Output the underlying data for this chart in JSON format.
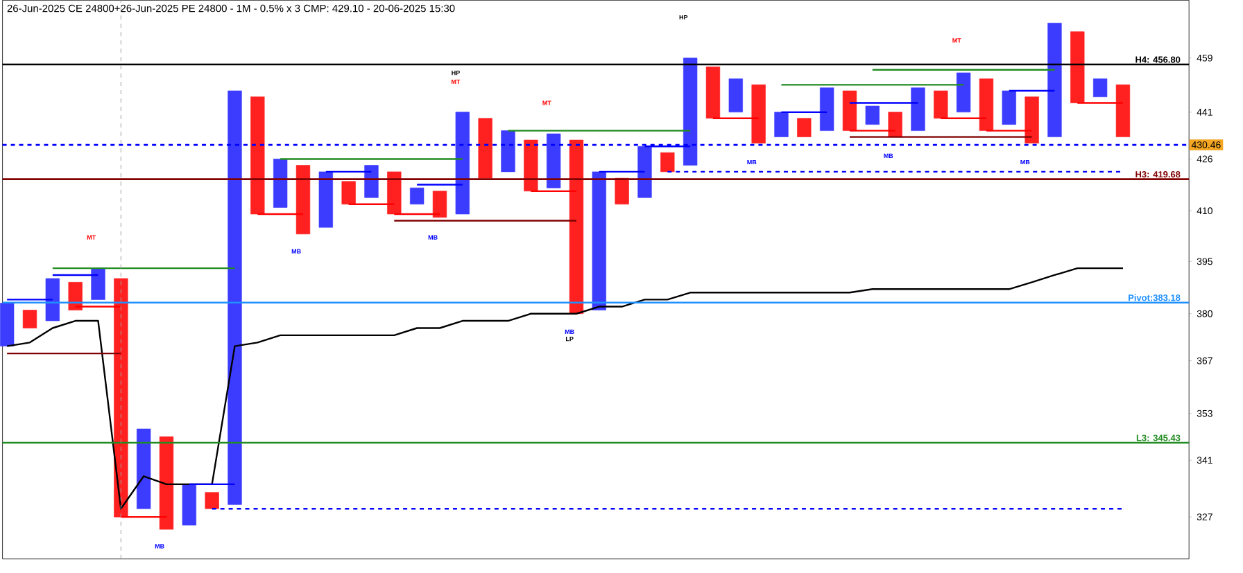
{
  "chart_data": {
    "type": "bar",
    "title": "26-Jun-2025 CE 24800+26-Jun-2025 PE 24800 - 1M - 0.5% x 3 CMP: 429.10 - 20-06-2025 15:30",
    "categories": [
      null,
      null,
      null,
      null,
      null,
      null,
      null,
      null,
      null,
      null,
      null,
      null,
      null,
      null,
      null,
      null,
      null,
      null,
      null,
      null,
      null,
      null,
      null,
      null,
      null,
      null,
      null,
      null,
      null,
      null,
      null,
      null,
      null,
      null,
      null,
      null,
      null,
      null,
      null,
      null,
      null,
      null,
      null,
      null,
      null,
      null,
      null,
      null,
      null,
      null
    ],
    "series": [
      {
        "base": [
          371,
          376,
          378,
          381,
          384,
          327,
          329,
          324,
          325,
          329,
          330,
          409,
          411,
          403,
          405,
          412,
          414,
          409,
          412,
          408,
          409,
          420,
          422,
          416,
          417,
          380,
          381,
          412,
          414,
          422,
          424,
          439,
          441,
          431,
          433,
          433,
          435,
          435,
          437,
          433,
          435,
          439,
          441,
          435,
          437,
          431,
          433,
          444,
          446,
          433
        ],
        "values": [
          12,
          5,
          12,
          8,
          9,
          63,
          20,
          23,
          10,
          4,
          118,
          37,
          15,
          21,
          17,
          7,
          10,
          13,
          5,
          8,
          32,
          19,
          13,
          16,
          17,
          52,
          41,
          8,
          16,
          6,
          35,
          17,
          11,
          19,
          8,
          6,
          14,
          13,
          6,
          8,
          14,
          9,
          13,
          17,
          11,
          15,
          38,
          24,
          6,
          17
        ],
        "colors": [
          "#3c3cff",
          "#ff2020",
          "#3c3cff",
          "#ff2020",
          "#3c3cff",
          "#ff2020",
          "#3c3cff",
          "#ff2020",
          "#3c3cff",
          "#ff2020",
          "#3c3cff",
          "#ff2020",
          "#3c3cff",
          "#ff2020",
          "#3c3cff",
          "#ff2020",
          "#3c3cff",
          "#ff2020",
          "#3c3cff",
          "#ff2020",
          "#3c3cff",
          "#ff2020",
          "#3c3cff",
          "#ff2020",
          "#3c3cff",
          "#ff2020",
          "#3c3cff",
          "#ff2020",
          "#3c3cff",
          "#ff2020",
          "#3c3cff",
          "#ff2020",
          "#3c3cff",
          "#ff2020",
          "#3c3cff",
          "#ff2020",
          "#3c3cff",
          "#ff2020",
          "#3c3cff",
          "#ff2020",
          "#3c3cff",
          "#ff2020",
          "#3c3cff",
          "#ff2020",
          "#3c3cff",
          "#ff2020",
          "#3c3cff",
          "#ff2020",
          "#3c3cff",
          "#ff2020"
        ]
      },
      {
        "type": "line",
        "color": "#000000",
        "values": [
          371,
          372,
          376,
          378,
          378,
          329,
          337,
          335,
          335,
          335,
          371,
          372,
          374,
          374,
          374,
          374,
          374,
          374,
          376,
          376,
          378,
          378,
          378,
          380,
          380,
          380,
          382,
          382,
          384,
          384,
          386,
          386,
          386,
          386,
          386,
          386,
          386,
          386,
          387,
          387,
          387,
          387,
          387,
          387,
          387,
          389,
          391,
          393,
          393,
          393
        ]
      },
      {
        "type": "line",
        "color": "#0000ff",
        "values": [
          384,
          384,
          384,
          null,
          null,
          null,
          null,
          null,
          335,
          335,
          335,
          null,
          null,
          null,
          422,
          422,
          422,
          null,
          418,
          418,
          418,
          null,
          null,
          null,
          null,
          null,
          422,
          422,
          422,
          null,
          null,
          null,
          null,
          null,
          441,
          441,
          441,
          null,
          null,
          null,
          null,
          null,
          null,
          null,
          448,
          448,
          448,
          null,
          null,
          null
        ]
      },
      {
        "type": "line",
        "color": "#0000ff",
        "values": [
          null,
          null,
          391,
          391,
          391,
          null,
          null,
          null,
          null,
          null,
          null,
          null,
          null,
          null,
          null,
          null,
          null,
          null,
          null,
          null,
          null,
          null,
          null,
          null,
          null,
          null,
          null,
          null,
          430,
          430,
          430,
          null,
          null,
          null,
          null,
          null,
          null,
          444,
          444,
          444,
          444,
          null,
          null,
          null,
          null,
          null,
          null,
          null,
          null,
          null
        ]
      },
      {
        "type": "line",
        "color": "#228b22",
        "values": [
          null,
          null,
          393,
          393,
          393,
          393,
          393,
          393,
          393,
          393,
          393,
          null,
          426,
          426,
          426,
          426,
          426,
          426,
          426,
          426,
          426,
          null,
          435,
          435,
          435,
          435,
          435,
          435,
          435,
          435,
          435,
          null,
          null,
          null,
          450,
          450,
          450,
          450,
          450,
          450,
          450,
          450,
          450,
          null,
          null,
          null,
          null,
          null,
          null,
          null
        ]
      },
      {
        "type": "line",
        "color": "#228b22",
        "values": [
          null,
          null,
          null,
          null,
          null,
          null,
          null,
          null,
          null,
          null,
          null,
          null,
          null,
          null,
          null,
          null,
          null,
          null,
          null,
          null,
          null,
          null,
          null,
          null,
          null,
          null,
          null,
          null,
          null,
          null,
          null,
          null,
          null,
          null,
          null,
          null,
          null,
          null,
          455,
          455,
          455,
          455,
          455,
          455,
          455,
          455,
          455,
          null,
          null,
          null
        ]
      },
      {
        "type": "line",
        "color": "#ff0000",
        "values": [
          null,
          null,
          null,
          382,
          382,
          382,
          null,
          null,
          null,
          null,
          null,
          409,
          409,
          409,
          null,
          412,
          412,
          412,
          null,
          null,
          null,
          null,
          null,
          416,
          416,
          416,
          null,
          null,
          null,
          null,
          null,
          439,
          439,
          439,
          null,
          null,
          null,
          435,
          435,
          435,
          null,
          439,
          439,
          439,
          null,
          null,
          null,
          444,
          444,
          444
        ]
      },
      {
        "type": "line",
        "color": "#ff0000",
        "values": [
          null,
          null,
          null,
          null,
          null,
          327,
          327,
          327,
          null,
          null,
          null,
          null,
          null,
          null,
          null,
          null,
          null,
          409,
          409,
          409,
          null,
          null,
          null,
          null,
          null,
          null,
          null,
          null,
          null,
          null,
          null,
          null,
          null,
          null,
          null,
          null,
          null,
          null,
          null,
          null,
          null,
          null,
          null,
          435,
          435,
          435,
          null,
          null,
          null,
          null
        ]
      },
      {
        "type": "line",
        "color": "#800000",
        "values": [
          369,
          369,
          369,
          369,
          369,
          369,
          null,
          null,
          null,
          null,
          null,
          null,
          null,
          null,
          null,
          null,
          null,
          407,
          407,
          407,
          407,
          407,
          407,
          407,
          407,
          407,
          null,
          null,
          null,
          null,
          null,
          null,
          null,
          null,
          null,
          null,
          null,
          433,
          433,
          433,
          433,
          433,
          433,
          433,
          433,
          433,
          null,
          null,
          null,
          null
        ]
      },
      {
        "type": "line",
        "color": "#0000ff",
        "line_style": "dashed",
        "values": [
          null,
          null,
          null,
          null,
          null,
          null,
          null,
          null,
          null,
          null,
          null,
          null,
          null,
          null,
          null,
          null,
          null,
          null,
          null,
          null,
          null,
          null,
          null,
          null,
          null,
          null,
          null,
          null,
          null,
          422,
          422,
          422,
          422,
          422,
          422,
          422,
          422,
          422,
          422,
          422,
          422,
          422,
          422,
          422,
          422,
          422,
          422,
          422,
          422,
          422
        ]
      },
      {
        "type": "line",
        "color": "#0000ff",
        "line_style": "dashed",
        "values": [
          null,
          null,
          null,
          null,
          null,
          null,
          null,
          null,
          null,
          329,
          329,
          329,
          329,
          329,
          329,
          329,
          329,
          329,
          329,
          329,
          329,
          329,
          329,
          329,
          329,
          329,
          329,
          329,
          329,
          329,
          329,
          329,
          329,
          329,
          329,
          329,
          329,
          329,
          329,
          329,
          329,
          329,
          329,
          329,
          329,
          329,
          329,
          329,
          329,
          329
        ]
      }
    ],
    "ylim": [
      317,
      479
    ],
    "yticks": [
      327,
      341,
      353,
      367,
      380,
      395,
      410,
      426,
      441,
      459
    ],
    "log": true,
    "tick_labels": "y",
    "ref_lines": [
      {
        "axis": "y",
        "value": 456.8,
        "label": "H4: 456.80",
        "color": "#000000"
      },
      {
        "axis": "y",
        "value": 419.68,
        "label": "H3: 419.68",
        "color": "#800000"
      },
      {
        "axis": "y",
        "value": 383.18,
        "label": "Pivot:383.18",
        "color": "#1e90ff"
      },
      {
        "axis": "y",
        "value": 345.43,
        "label": "L3: 345.43",
        "color": "#228b22"
      },
      {
        "axis": "y",
        "value": 430.46,
        "label": "430.46",
        "color": "#0000ff",
        "line_style": "dashed"
      }
    ],
    "annotations": [
      "MT",
      "MB",
      "MB",
      "HP",
      "MT",
      "MT",
      "MB",
      "HP",
      "MB",
      "LP",
      "MB",
      "MT",
      "MB",
      "MB"
    ]
  }
}
